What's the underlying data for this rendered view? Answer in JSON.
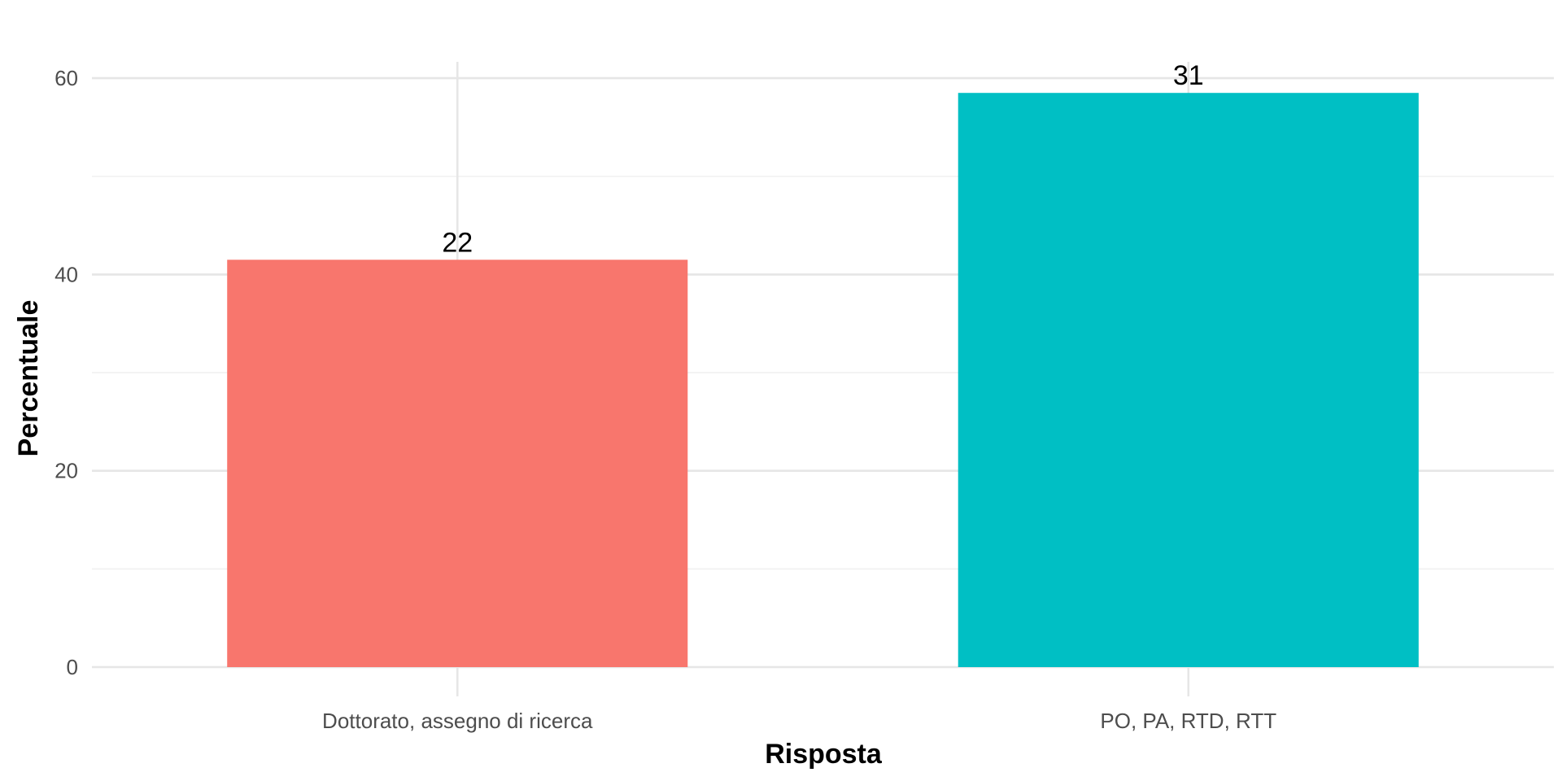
{
  "chart_data": {
    "type": "bar",
    "title": "",
    "xlabel": "Risposta",
    "ylabel": "Percentuale",
    "categories": [
      "Dottorato, assegno di ricerca",
      "PO, PA, RTD, RTT"
    ],
    "values": [
      41.5,
      58.5
    ],
    "data_labels": [
      "22",
      "31"
    ],
    "colors": [
      "#F8766D",
      "#00BFC4"
    ],
    "ylim": [
      0,
      61.5
    ],
    "yticks": [
      0,
      20,
      40,
      60
    ],
    "ytick_labels": [
      "0",
      "20",
      "40",
      "60"
    ],
    "grid": true,
    "legend": "none"
  }
}
